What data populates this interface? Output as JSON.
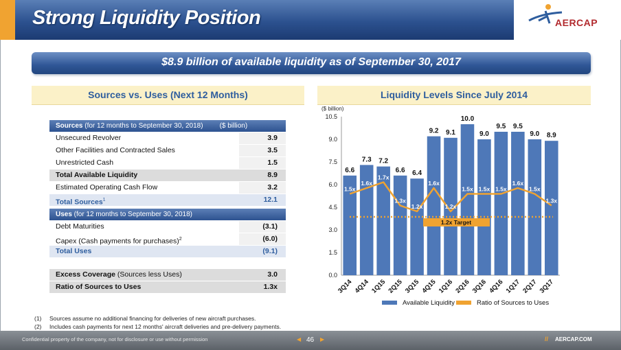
{
  "header": {
    "title": "Strong Liquidity Position",
    "logo_text": "AERCAP"
  },
  "banner": {
    "text": "$8.9 billion of available liquidity as of September 30, 2017"
  },
  "left": {
    "heading": "Sources vs. Uses (Next 12 Months)",
    "sources": {
      "title_bold": "Sources",
      "title_rest": " (for 12 months to September 30, 2018)",
      "unit": "($ billion)",
      "rows": [
        {
          "label": "Unsecured Revolver",
          "value": "3.9",
          "style": "plain"
        },
        {
          "label": "Other Facilities and Contracted Sales",
          "value": "3.5",
          "style": "plain"
        },
        {
          "label": "Unrestricted Cash",
          "value": "1.5",
          "style": "plain"
        },
        {
          "label": "Total Available Liquidity",
          "value": "8.9",
          "style": "gray"
        },
        {
          "label": "Estimated Operating Cash Flow",
          "value": "3.2",
          "style": "plain"
        },
        {
          "label": "Total Sources",
          "sup": "1",
          "value": "12.1",
          "style": "blue"
        }
      ]
    },
    "uses": {
      "title_bold": "Uses",
      "title_rest": " (for 12 months to September 30, 2018)",
      "rows": [
        {
          "label": "Debt Maturities",
          "value": "(3.1)",
          "style": "plain"
        },
        {
          "label": "Capex (Cash payments for purchases)",
          "sup": "2",
          "value": "(6.0)",
          "style": "plain"
        },
        {
          "label": "Total Uses",
          "value": "(9.1)",
          "style": "blue"
        }
      ]
    },
    "coverage": {
      "excess_bold": "Excess Coverage",
      "excess_rest": " (Sources less Uses)",
      "excess_value": "3.0",
      "ratio_label": "Ratio of Sources to Uses",
      "ratio_value": "1.3x"
    }
  },
  "notes": [
    {
      "num": "(1)",
      "text": "Sources assume no additional financing for deliveries of new aircraft purchases."
    },
    {
      "num": "(2)",
      "text": "Includes cash payments for next 12 months' aircraft deliveries and pre-delivery payments."
    }
  ],
  "chart_data": {
    "type": "bar",
    "title": "Liquidity Levels Since July 2014",
    "ylabel": "($ billion)",
    "categories": [
      "3Q14",
      "4Q14",
      "1Q15",
      "2Q15",
      "3Q15",
      "4Q15",
      "1Q16",
      "2Q16",
      "3Q16",
      "4Q16",
      "1Q17",
      "2Q17",
      "3Q17"
    ],
    "series": [
      {
        "name": "Available Liquidity",
        "kind": "bar",
        "color": "#4e78b8",
        "values": [
          6.6,
          7.3,
          7.2,
          6.6,
          6.4,
          9.2,
          9.1,
          10.0,
          9.0,
          9.5,
          9.5,
          9.0,
          8.9
        ],
        "labels": [
          "6.6",
          "7.3",
          "7.2",
          "6.6",
          "6.4",
          "9.2",
          "9.1",
          "10.0",
          "9.0",
          "9.5",
          "9.5",
          "9.0",
          "8.9"
        ]
      },
      {
        "name": "Ratio of Sources to Uses",
        "kind": "line",
        "color": "#f0a331",
        "values": [
          1.5,
          1.6,
          1.7,
          1.3,
          1.2,
          1.6,
          1.2,
          1.5,
          1.5,
          1.5,
          1.6,
          1.5,
          1.3
        ],
        "labels": [
          "1.5x",
          "1.6x",
          "1.7x",
          "1.3x",
          "1.2x",
          "1.6x",
          "1.2x",
          "1.5x",
          "1.5x",
          "1.5x",
          "1.6x",
          "1.5x",
          "1.3x"
        ]
      }
    ],
    "target": {
      "label": "1.2x Target",
      "value": 1.2
    },
    "yticks": [
      "0.0",
      "1.5",
      "3.0",
      "4.5",
      "6.0",
      "7.5",
      "9.0",
      "10.5"
    ],
    "ylim": [
      0,
      10.5
    ],
    "legend": "bottom"
  },
  "footer": {
    "confidential": "Confidential property of the company, not for disclosure or use without permission",
    "page": "46",
    "slashes": "//",
    "site": "AERCAP.COM"
  }
}
